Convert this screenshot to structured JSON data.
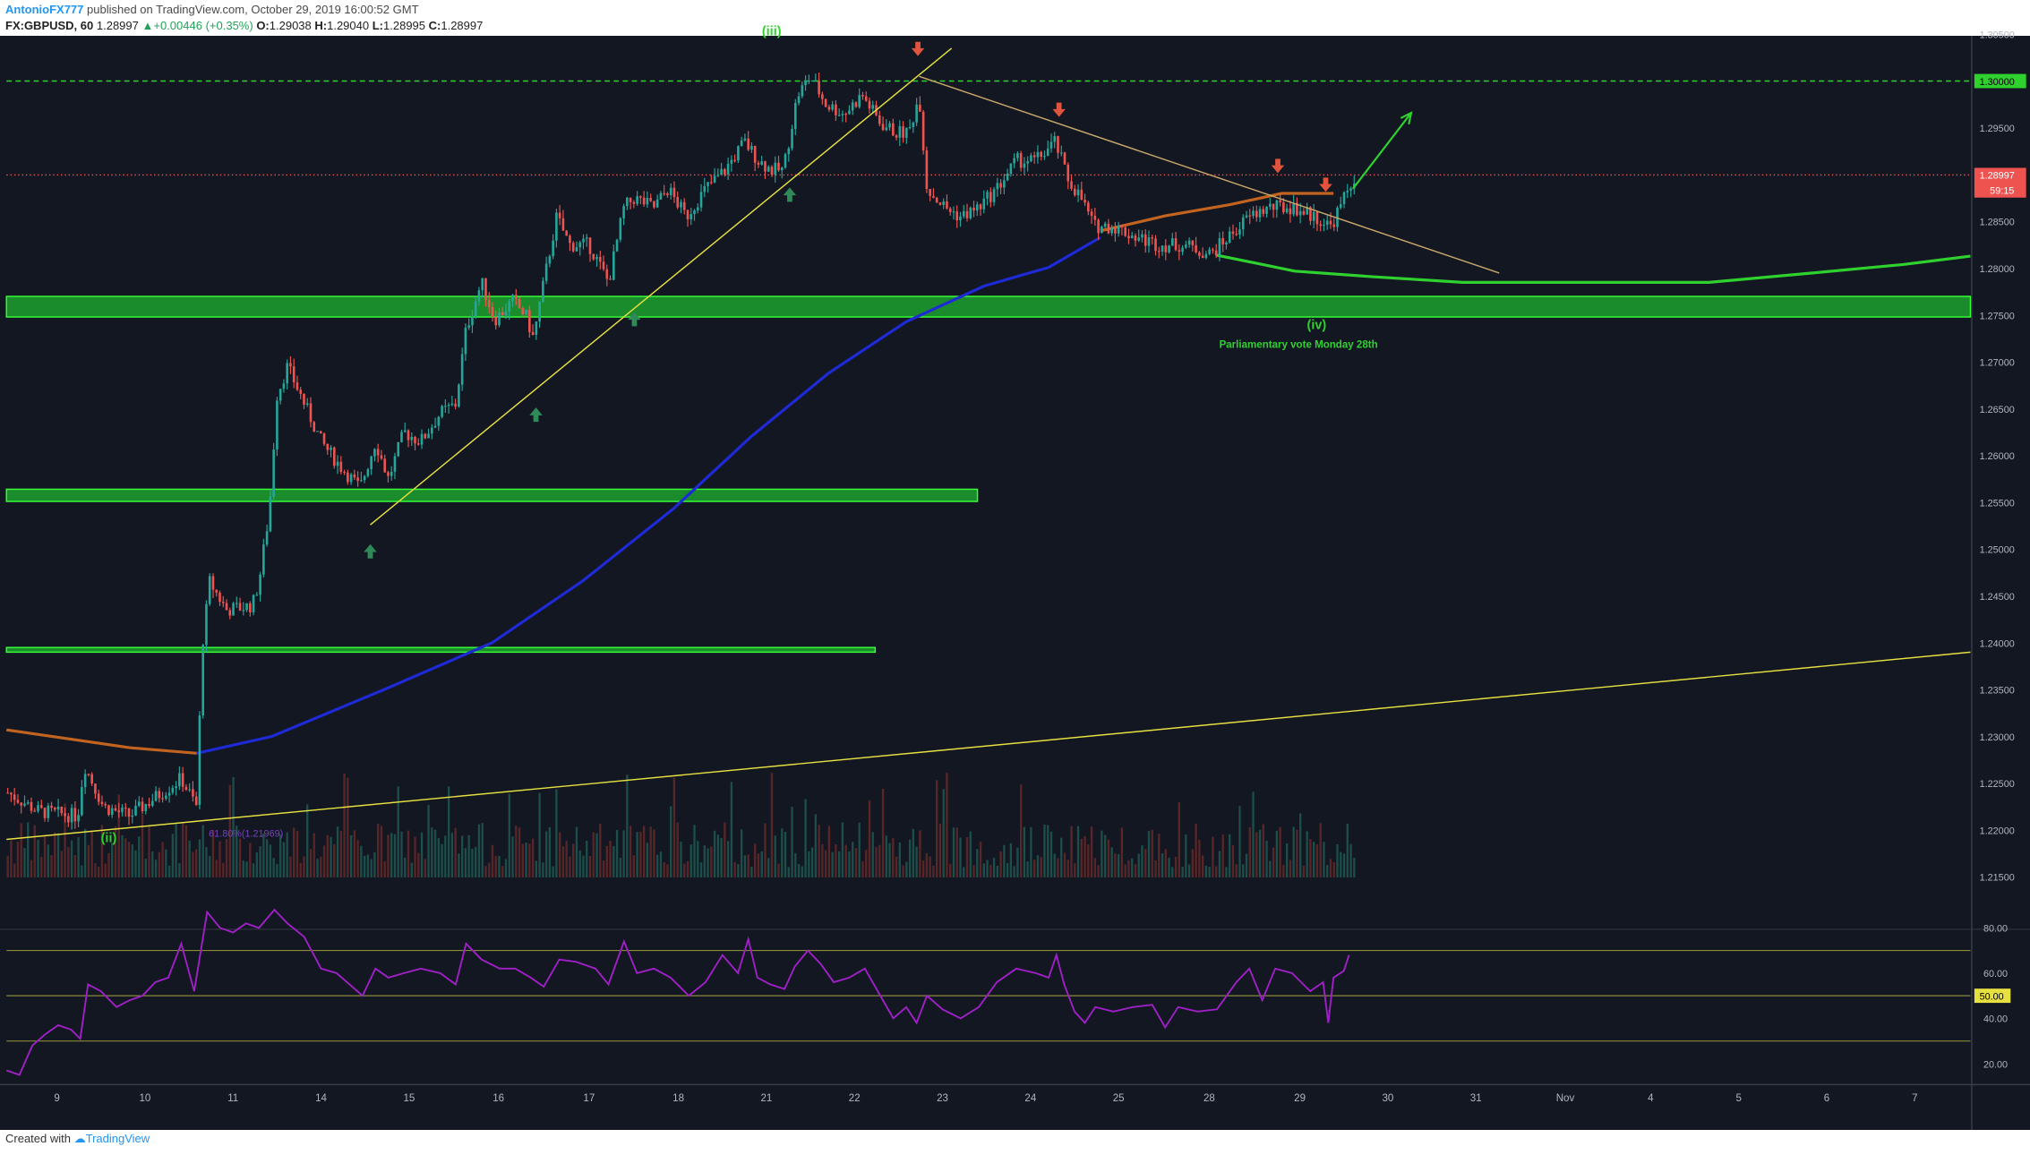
{
  "header": {
    "author": "AntonioFX777",
    "published_text": " published on TradingView.com, October 29, 2019 16:00:52 GMT",
    "symbol": "FX:GBPUSD, 60",
    "last": "1.28997",
    "arrow": "▲",
    "change": "+0.00446 (+0.35%)",
    "o_label": "O:",
    "o": "1.29038",
    "h_label": "H:",
    "h": "1.29040",
    "l_label": "L:",
    "l": "1.28995",
    "c_label": "C:",
    "c": "1.28997"
  },
  "footer": {
    "created_with": "Created with",
    "brand": "TradingView"
  },
  "colors": {
    "background": "#131722",
    "green_zone": "#1fbf2f",
    "ma_blue": "#1e2ad6",
    "ma_orange": "#c2641f",
    "ma_green": "#2fd12f",
    "trend_yellow": "#e6e040",
    "trend_tan": "#c8a86a",
    "rsi": "#a020c8",
    "arrow_up": "#2e8b57",
    "arrow_down": "#e0533c"
  },
  "chart_data": [
    {
      "type": "candlestick",
      "symbol": "FX:GBPUSD",
      "timeframe": "60",
      "x_ticks": [
        "9",
        "10",
        "11",
        "14",
        "15",
        "16",
        "17",
        "18",
        "21",
        "22",
        "23",
        "24",
        "25",
        "28",
        "29",
        "30",
        "31",
        "Nov",
        "4",
        "5",
        "6",
        "7"
      ],
      "y_ticks": [
        "1.30500",
        "1.30000",
        "1.29500",
        "1.29000",
        "1.28500",
        "1.28000",
        "1.27500",
        "1.27000",
        "1.26500",
        "1.26000",
        "1.25500",
        "1.25000",
        "1.24500",
        "1.24000",
        "1.23500",
        "1.23000",
        "1.22500",
        "1.22000",
        "1.21500"
      ],
      "ylim": [
        1.2148,
        1.3058
      ],
      "price_tags": [
        {
          "label": "1.30000",
          "value": 1.3,
          "kind": "level"
        },
        {
          "label": "1.28997",
          "value": 1.28997,
          "kind": "last"
        },
        {
          "label": "59:15",
          "kind": "countdown"
        }
      ],
      "path_points": [
        [
          0,
          1.2245
        ],
        [
          30,
          1.222
        ],
        [
          60,
          1.2215
        ],
        [
          65,
          1.227
        ],
        [
          80,
          1.2225
        ],
        [
          100,
          1.2215
        ],
        [
          120,
          1.2235
        ],
        [
          140,
          1.2255
        ],
        [
          152,
          1.2225
        ],
        [
          156,
          1.2395
        ],
        [
          162,
          1.2465
        ],
        [
          175,
          1.2435
        ],
        [
          195,
          1.244
        ],
        [
          200,
          1.2465
        ],
        [
          208,
          1.254
        ],
        [
          214,
          1.2665
        ],
        [
          222,
          1.2695
        ],
        [
          232,
          1.2665
        ],
        [
          248,
          1.2615
        ],
        [
          262,
          1.259
        ],
        [
          278,
          1.2565
        ],
        [
          290,
          1.2615
        ],
        [
          300,
          1.2575
        ],
        [
          312,
          1.2625
        ],
        [
          325,
          1.2615
        ],
        [
          340,
          1.2645
        ],
        [
          352,
          1.2655
        ],
        [
          360,
          1.2735
        ],
        [
          372,
          1.2785
        ],
        [
          382,
          1.2745
        ],
        [
          396,
          1.2765
        ],
        [
          406,
          1.275
        ],
        [
          412,
          1.2725
        ],
        [
          420,
          1.2785
        ],
        [
          430,
          1.2855
        ],
        [
          440,
          1.2825
        ],
        [
          455,
          1.2825
        ],
        [
          470,
          1.2785
        ],
        [
          482,
          1.2865
        ],
        [
          490,
          1.2875
        ],
        [
          505,
          1.2865
        ],
        [
          516,
          1.2885
        ],
        [
          530,
          1.2855
        ],
        [
          545,
          1.2885
        ],
        [
          560,
          1.2905
        ],
        [
          575,
          1.2935
        ],
        [
          586,
          1.2915
        ],
        [
          596,
          1.2905
        ],
        [
          605,
          1.2905
        ],
        [
          616,
          1.2985
        ],
        [
          626,
          1.3005
        ],
        [
          638,
          1.2975
        ],
        [
          652,
          1.2965
        ],
        [
          666,
          1.2985
        ],
        [
          680,
          1.2955
        ],
        [
          692,
          1.2945
        ],
        [
          702,
          1.2945
        ],
        [
          710,
          1.2985
        ],
        [
          716,
          1.2885
        ],
        [
          730,
          1.2865
        ],
        [
          742,
          1.2855
        ],
        [
          756,
          1.2865
        ],
        [
          770,
          1.2885
        ],
        [
          785,
          1.2915
        ],
        [
          800,
          1.2915
        ],
        [
          815,
          1.2935
        ],
        [
          825,
          1.2895
        ],
        [
          835,
          1.2875
        ],
        [
          845,
          1.2845
        ],
        [
          860,
          1.2845
        ],
        [
          875,
          1.2835
        ],
        [
          895,
          1.2825
        ],
        [
          915,
          1.2825
        ],
        [
          935,
          1.2815
        ],
        [
          950,
          1.2835
        ],
        [
          965,
          1.2855
        ],
        [
          980,
          1.2865
        ],
        [
          1000,
          1.2865
        ],
        [
          1015,
          1.2855
        ],
        [
          1028,
          1.2845
        ],
        [
          1035,
          1.2865
        ],
        [
          1045,
          1.2895
        ],
        [
          1048,
          1.29
        ]
      ],
      "dashed_level": 1.3,
      "last_price_line": 1.28997,
      "zones": [
        {
          "x0": 5,
          "x1": 1522,
          "y0": 1.2748,
          "y1": 1.277
        },
        {
          "x0": 5,
          "x1": 755,
          "y0": 1.2551,
          "y1": 1.2564
        },
        {
          "x0": 5,
          "x1": 676,
          "y0": 1.239,
          "y1": 1.2395
        }
      ],
      "moving_averages": [
        {
          "color_key": "ma_orange",
          "points": [
            [
              5,
              1.2307
            ],
            [
              50,
              1.2298
            ],
            [
              100,
              1.2288
            ],
            [
              152,
              1.2282
            ]
          ]
        },
        {
          "color_key": "ma_blue",
          "points": [
            [
              152,
              1.2282
            ],
            [
              210,
              1.23
            ],
            [
              300,
              1.2352
            ],
            [
              380,
              1.24
            ],
            [
              450,
              1.2466
            ],
            [
              520,
              1.2543
            ],
            [
              580,
              1.262
            ],
            [
              640,
              1.2688
            ],
            [
              700,
              1.2743
            ],
            [
              760,
              1.2781
            ],
            [
              810,
              1.2801
            ],
            [
              850,
              1.2833
            ]
          ]
        },
        {
          "color_key": "ma_orange",
          "points": [
            [
              850,
              1.284
            ],
            [
              900,
              1.2856
            ],
            [
              950,
              1.2868
            ],
            [
              990,
              1.288
            ],
            [
              1030,
              1.288
            ]
          ]
        },
        {
          "color_key": "ma_green",
          "points": [
            [
              940,
              1.2814
            ],
            [
              1000,
              1.2797
            ],
            [
              1060,
              1.2791
            ],
            [
              1130,
              1.2785
            ],
            [
              1200,
              1.2785
            ],
            [
              1320,
              1.2785
            ],
            [
              1400,
              1.2795
            ],
            [
              1470,
              1.2804
            ],
            [
              1522,
              1.2813
            ]
          ]
        }
      ],
      "trend_lines": [
        {
          "color_key": "trend_yellow",
          "points": [
            [
              286,
              1.2526
            ],
            [
              735,
              1.3035
            ]
          ]
        },
        {
          "color_key": "trend_tan",
          "points": [
            [
              710,
              1.3005
            ],
            [
              1158,
              1.2795
            ]
          ]
        },
        {
          "color_key": "trend_yellow",
          "points": [
            [
              5,
              1.219
            ],
            [
              1522,
              1.239
            ]
          ]
        }
      ],
      "projection_arrow": {
        "points": [
          [
            1045,
            1.2885
          ],
          [
            1090,
            1.2966
          ]
        ]
      },
      "up_arrows": [
        [
          286,
          1.2497
        ],
        [
          414,
          1.2643
        ],
        [
          490,
          1.2745
        ],
        [
          610,
          1.2878
        ]
      ],
      "down_arrows": [
        [
          709,
          1.3035
        ],
        [
          818,
          1.297
        ],
        [
          987,
          1.291
        ],
        [
          1024,
          1.289
        ]
      ],
      "annotations": [
        {
          "text": "(iii)",
          "x": 596,
          "value": 1.3049
        },
        {
          "text": "(iv)",
          "x": 1017,
          "value": 1.2735
        },
        {
          "text": "Parliamentary vote Monday 28th",
          "x": 1003,
          "value": 1.2715
        },
        {
          "text": "(ii)",
          "x": 84,
          "value": 1.2187
        },
        {
          "text": "61.80%(1.21969)",
          "x": 190,
          "value": 1.21969
        }
      ]
    },
    {
      "type": "line",
      "name": "RSI",
      "ylim": [
        13,
        92
      ],
      "y_ticks": [
        "80.00",
        "60.00",
        "40.00",
        "20.00"
      ],
      "levels": [
        70,
        50,
        30
      ],
      "level_tag": "50.00",
      "points": [
        [
          5,
          17
        ],
        [
          15,
          15
        ],
        [
          25,
          28
        ],
        [
          35,
          33
        ],
        [
          45,
          37
        ],
        [
          55,
          35
        ],
        [
          62,
          31
        ],
        [
          68,
          55
        ],
        [
          78,
          52
        ],
        [
          90,
          45
        ],
        [
          100,
          48
        ],
        [
          110,
          50
        ],
        [
          120,
          56
        ],
        [
          130,
          58
        ],
        [
          140,
          73
        ],
        [
          150,
          52
        ],
        [
          160,
          87
        ],
        [
          170,
          80
        ],
        [
          180,
          78
        ],
        [
          190,
          82
        ],
        [
          200,
          80
        ],
        [
          212,
          88
        ],
        [
          222,
          82
        ],
        [
          235,
          76
        ],
        [
          248,
          62
        ],
        [
          260,
          60
        ],
        [
          270,
          55
        ],
        [
          280,
          50
        ],
        [
          290,
          62
        ],
        [
          300,
          58
        ],
        [
          312,
          60
        ],
        [
          325,
          62
        ],
        [
          340,
          60
        ],
        [
          352,
          55
        ],
        [
          360,
          73
        ],
        [
          372,
          66
        ],
        [
          386,
          62
        ],
        [
          398,
          62
        ],
        [
          410,
          58
        ],
        [
          420,
          54
        ],
        [
          432,
          66
        ],
        [
          445,
          65
        ],
        [
          460,
          62
        ],
        [
          470,
          55
        ],
        [
          482,
          74
        ],
        [
          492,
          60
        ],
        [
          505,
          62
        ],
        [
          518,
          58
        ],
        [
          532,
          50
        ],
        [
          545,
          56
        ],
        [
          558,
          68
        ],
        [
          570,
          60
        ],
        [
          578,
          75
        ],
        [
          585,
          58
        ],
        [
          595,
          55
        ],
        [
          606,
          53
        ],
        [
          614,
          63
        ],
        [
          624,
          70
        ],
        [
          634,
          64
        ],
        [
          644,
          56
        ],
        [
          656,
          58
        ],
        [
          668,
          62
        ],
        [
          680,
          50
        ],
        [
          690,
          40
        ],
        [
          700,
          45
        ],
        [
          708,
          38
        ],
        [
          716,
          50
        ],
        [
          728,
          44
        ],
        [
          742,
          40
        ],
        [
          756,
          45
        ],
        [
          770,
          56
        ],
        [
          785,
          62
        ],
        [
          800,
          60
        ],
        [
          810,
          58
        ],
        [
          816,
          68
        ],
        [
          822,
          55
        ],
        [
          830,
          43
        ],
        [
          838,
          38
        ],
        [
          846,
          45
        ],
        [
          860,
          43
        ],
        [
          875,
          45
        ],
        [
          890,
          46
        ],
        [
          900,
          36
        ],
        [
          910,
          45
        ],
        [
          925,
          43
        ],
        [
          940,
          44
        ],
        [
          955,
          56
        ],
        [
          965,
          62
        ],
        [
          975,
          48
        ],
        [
          985,
          62
        ],
        [
          998,
          60
        ],
        [
          1012,
          52
        ],
        [
          1022,
          56
        ],
        [
          1026,
          38
        ],
        [
          1030,
          58
        ],
        [
          1038,
          61
        ],
        [
          1042,
          68
        ]
      ]
    }
  ]
}
